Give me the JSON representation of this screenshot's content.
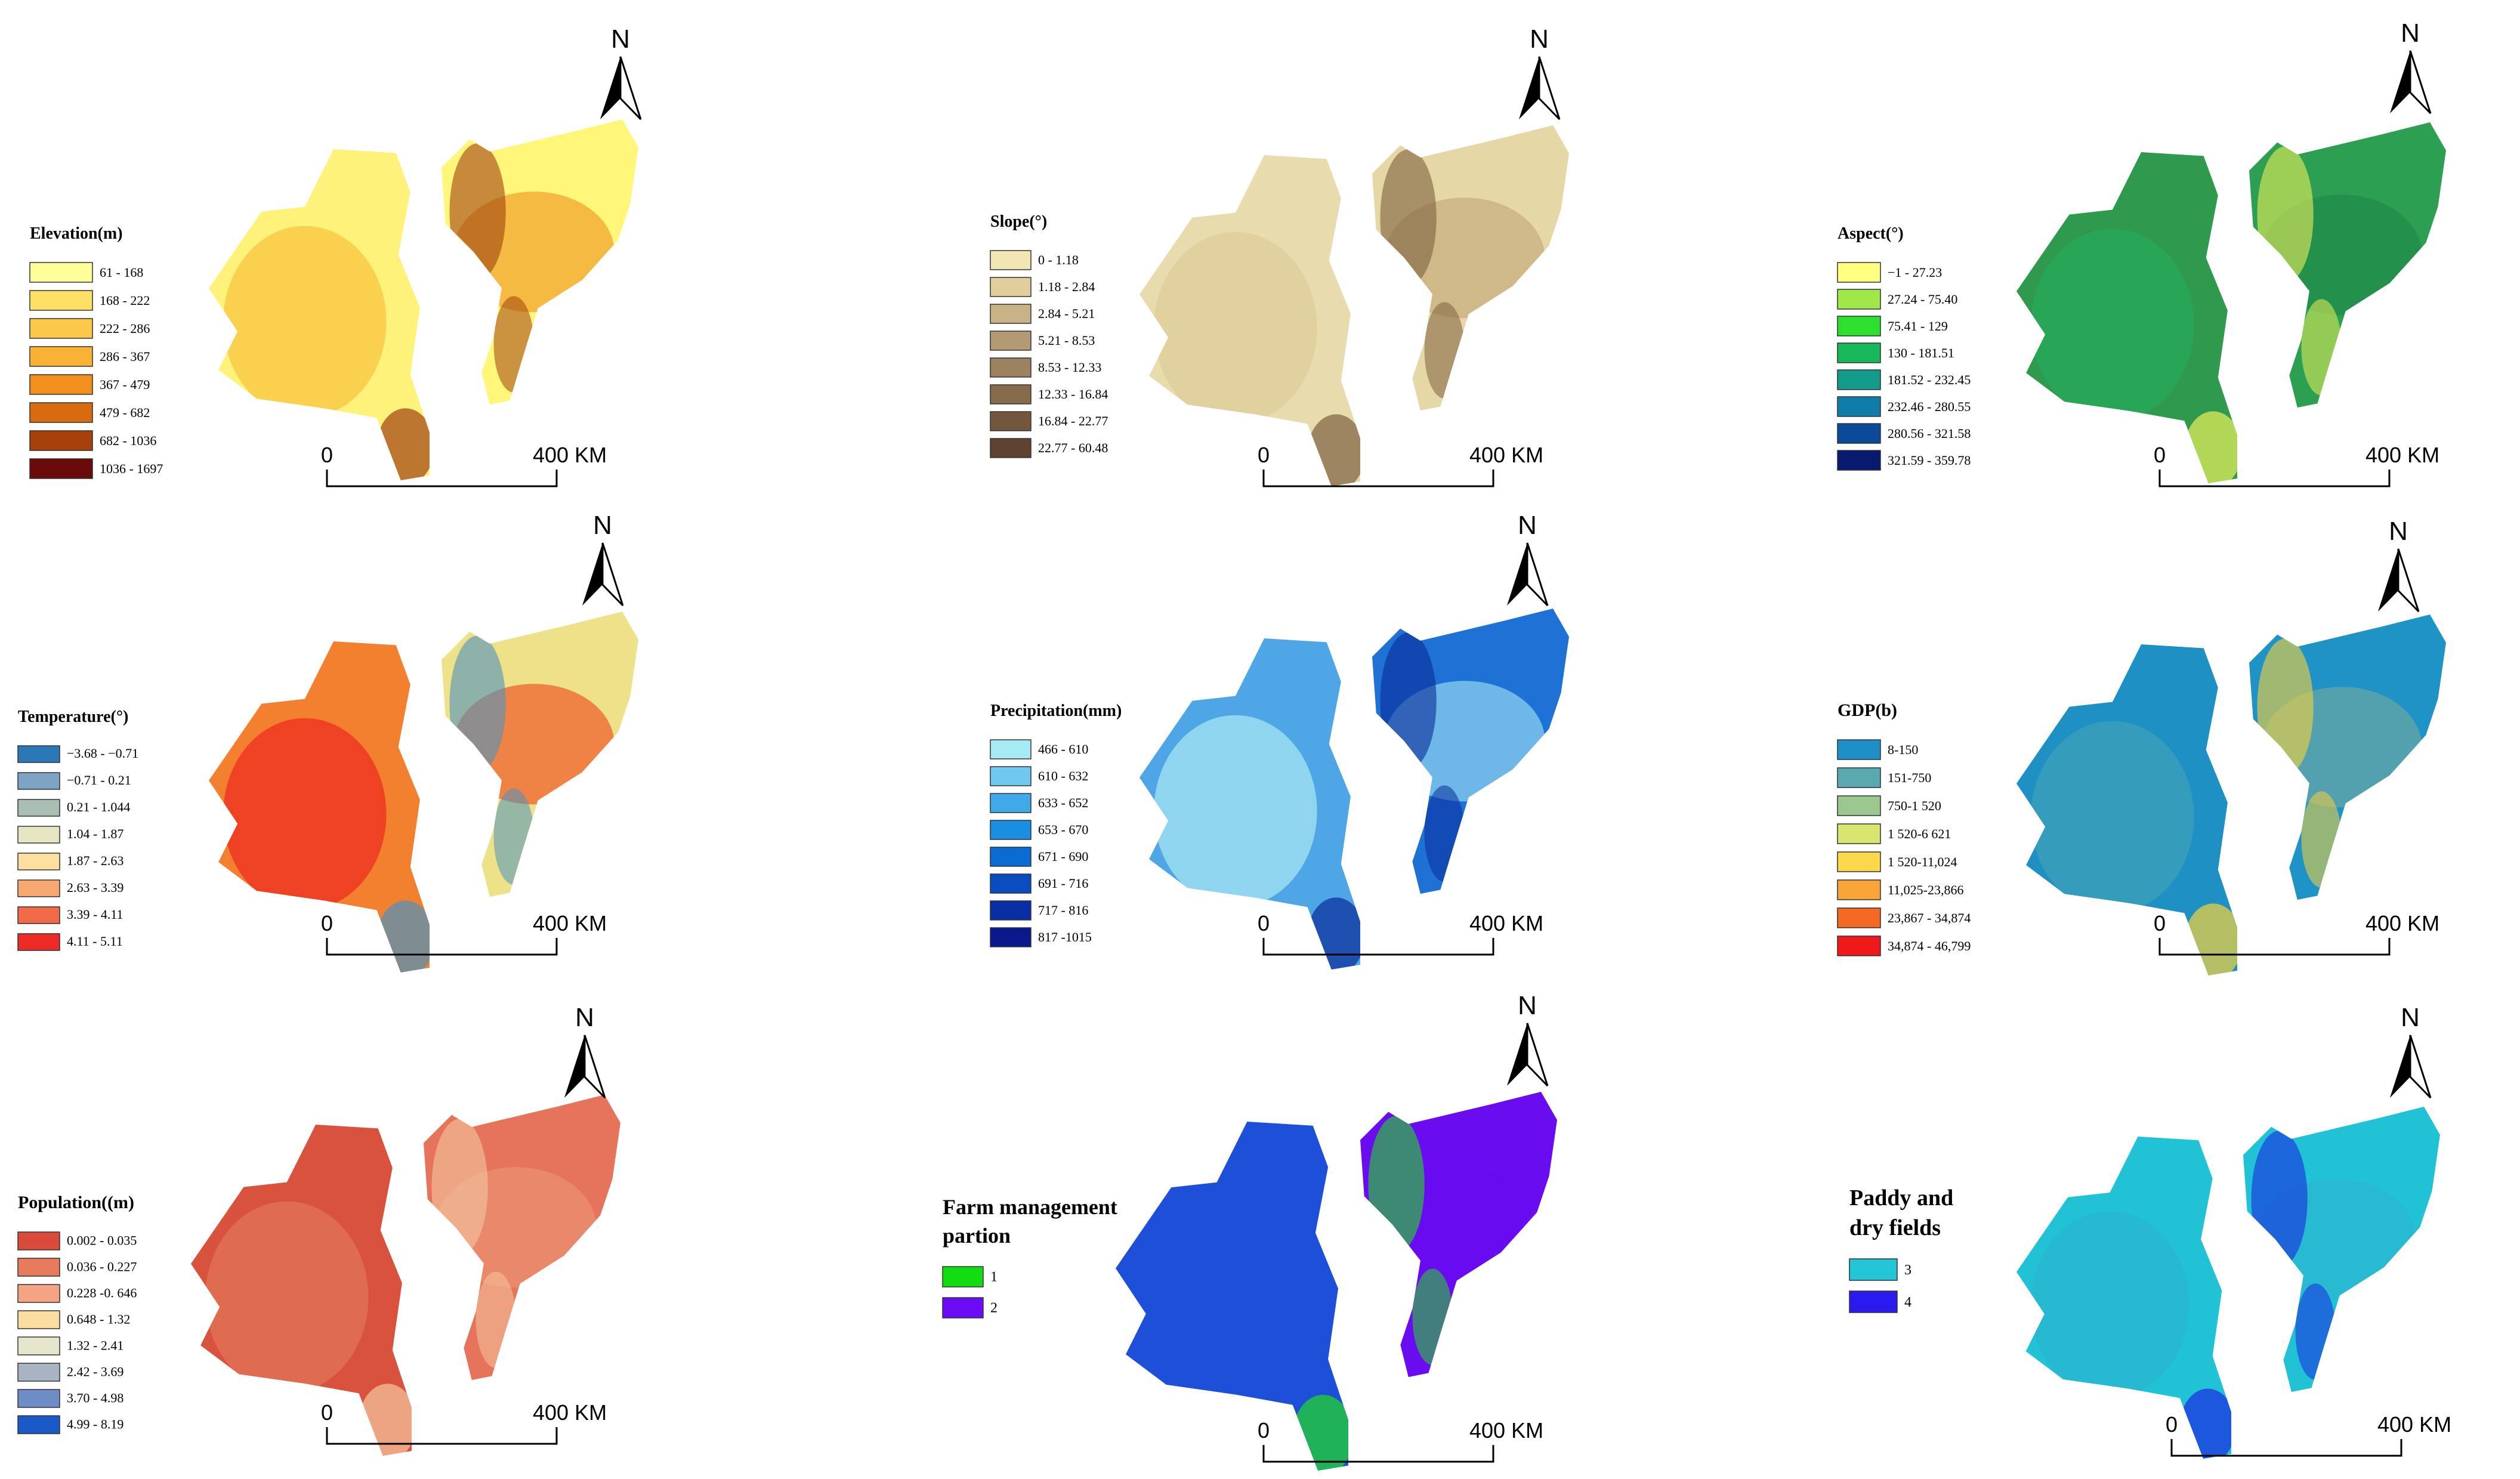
{
  "scale_bar": {
    "start_label": "0",
    "end_label": "400 KM"
  },
  "north_label": "N",
  "panels": [
    {
      "id": "elevation",
      "legend_title": [
        "Elevation(m)"
      ],
      "map_colors": {
        "left_base": "#fff27a",
        "left_mid": "#f7c640",
        "right_base": "#fff67a",
        "right_mid": "#f0a12a",
        "rugged": "#a0420f"
      },
      "legend": [
        {
          "label": "61 - 168",
          "color": "#ffff99"
        },
        {
          "label": "168 - 222",
          "color": "#ffe066"
        },
        {
          "label": "222 - 286",
          "color": "#fcc84a"
        },
        {
          "label": "286 - 367",
          "color": "#f9b233"
        },
        {
          "label": "367 - 479",
          "color": "#f28e1c"
        },
        {
          "label": "479 - 682",
          "color": "#d86a10"
        },
        {
          "label": "682 - 1036",
          "color": "#a8400c"
        },
        {
          "label": "1036 - 1697",
          "color": "#6b0a0a"
        }
      ]
    },
    {
      "id": "slope",
      "legend_title": [
        "Slope(°)"
      ],
      "map_colors": {
        "left_base": "#e8dcae",
        "left_mid": "#ddcd98",
        "right_base": "#e6d8a6",
        "right_mid": "#c6ad7c",
        "rugged": "#7d6040"
      },
      "legend": [
        {
          "label": "0 - 1.18",
          "color": "#f3e6b5"
        },
        {
          "label": "1.18 - 2.84",
          "color": "#e0cf9c"
        },
        {
          "label": "2.84 - 5.21",
          "color": "#c9b386"
        },
        {
          "label": "5.21 - 8.53",
          "color": "#b39a72"
        },
        {
          "label": "8.53 - 12.33",
          "color": "#9c8260"
        },
        {
          "label": "12.33 - 16.84",
          "color": "#866b4d"
        },
        {
          "label": "16.84 - 22.77",
          "color": "#72573c"
        },
        {
          "label": "22.77 - 60.48",
          "color": "#5e4430"
        }
      ]
    },
    {
      "id": "aspect",
      "legend_title": [
        "Aspect(°)"
      ],
      "map_colors": {
        "left_base": "#2f9a4e",
        "left_mid": "#27a85a",
        "right_base": "#2c9f52",
        "right_mid": "#1f8a48",
        "rugged": "#e9ef5a"
      },
      "legend": [
        {
          "label": "−1 - 27.23",
          "color": "#ffff80"
        },
        {
          "label": "27.24 - 75.40",
          "color": "#a0e84a"
        },
        {
          "label": "75.41 - 129",
          "color": "#2ee02e"
        },
        {
          "label": "130 - 181.51",
          "color": "#16b85a"
        },
        {
          "label": "181.52 - 232.45",
          "color": "#139c8c"
        },
        {
          "label": "232.46 - 280.55",
          "color": "#0e7ea8"
        },
        {
          "label": "280.56 - 321.58",
          "color": "#0b4a98"
        },
        {
          "label": "321.59 - 359.78",
          "color": "#081a70"
        }
      ]
    },
    {
      "id": "temperature",
      "legend_title": [
        "Temperature(°)"
      ],
      "map_colors": {
        "left_base": "#f2802e",
        "left_mid": "#ee2e22",
        "right_base": "#ede28a",
        "right_mid": "#f05a28",
        "rugged": "#4f93be"
      },
      "legend": [
        {
          "label": "−3.68 - −0.71",
          "color": "#2b78b8"
        },
        {
          "label": "−0.71 - 0.21",
          "color": "#7ea4c4"
        },
        {
          "label": "0.21 - 1.044",
          "color": "#a9bfb4"
        },
        {
          "label": "1.04 - 1.87",
          "color": "#e6e6c2"
        },
        {
          "label": "1.87 - 2.63",
          "color": "#fde0a0"
        },
        {
          "label": "2.63 - 3.39",
          "color": "#f7a870"
        },
        {
          "label": "3.39 - 4.11",
          "color": "#f26a48"
        },
        {
          "label": "4.11 - 5.11",
          "color": "#ec2a26"
        }
      ]
    },
    {
      "id": "precipitation",
      "legend_title": [
        "Precipitation(mm)"
      ],
      "map_colors": {
        "left_base": "#4ea6e6",
        "left_mid": "#a6e4f2",
        "right_base": "#1e72d6",
        "right_mid": "#8fd6f0",
        "rugged": "#0a2c9a"
      },
      "legend": [
        {
          "label": "466 - 610",
          "color": "#a6eaf4"
        },
        {
          "label": "610 - 632",
          "color": "#6ec8f0"
        },
        {
          "label": "633 - 652",
          "color": "#3eaaea"
        },
        {
          "label": "653 - 670",
          "color": "#1a8ee0"
        },
        {
          "label": "671 - 690",
          "color": "#0a6cd2"
        },
        {
          "label": "691 - 716",
          "color": "#0a4cc0"
        },
        {
          "label": "717 - 816",
          "color": "#0a2ea6"
        },
        {
          "label": "817 -1015",
          "color": "#0a1a8c"
        }
      ]
    },
    {
      "id": "gdp",
      "legend_title": [
        "GDP(b)"
      ],
      "map_colors": {
        "left_base": "#1e90c4",
        "left_mid": "#3fa0b8",
        "right_base": "#1f92c6",
        "right_mid": "#6aa6a4",
        "rugged": "#f7d23a"
      },
      "legend": [
        {
          "label": "8-150",
          "color": "#1e90c8"
        },
        {
          "label": "151-750",
          "color": "#5aa8b0"
        },
        {
          "label": "750-1 520",
          "color": "#9cc890"
        },
        {
          "label": "1 520-6 621",
          "color": "#d8e670"
        },
        {
          "label": "1 520-11,024",
          "color": "#fbd84a"
        },
        {
          "label": "11,025-23,866",
          "color": "#f9a436"
        },
        {
          "label": "23,867 - 34,874",
          "color": "#f46a22"
        },
        {
          "label": "34,874 - 46,799",
          "color": "#ee1a1a"
        }
      ]
    },
    {
      "id": "population",
      "legend_title": [
        "Population((m)"
      ],
      "map_colors": {
        "left_base": "#d9523e",
        "left_mid": "#e07458",
        "right_base": "#e5745a",
        "right_mid": "#ec9272",
        "rugged": "#f4c7a0"
      },
      "legend": [
        {
          "label": "0.002 - 0.035",
          "color": "#d94a3a"
        },
        {
          "label": "0.036 - 0.227",
          "color": "#e87a5e"
        },
        {
          "label": "0.228 -0. 646",
          "color": "#f4a482"
        },
        {
          "label": "0.648 - 1.32",
          "color": "#fbdca0"
        },
        {
          "label": "1.32 - 2.41",
          "color": "#e6e6cc"
        },
        {
          "label": "2.42 - 3.69",
          "color": "#a8b4c4"
        },
        {
          "label": "3.70 - 4.98",
          "color": "#6e8cc8"
        },
        {
          "label": "4.99 - 8.19",
          "color": "#1a5ac8"
        }
      ]
    },
    {
      "id": "farm",
      "legend_title": [
        "Farm management",
        "partion"
      ],
      "map_colors": {
        "left_base": "#1d4fd8",
        "left_mid": "#1d4fd8",
        "right_base": "#6a0cf0",
        "right_mid": "#6a0cf0",
        "rugged": "#22dd22"
      },
      "legend": [
        {
          "label": "1",
          "color": "#11dd11"
        },
        {
          "label": "2",
          "color": "#6a0cf5"
        }
      ]
    },
    {
      "id": "paddy",
      "legend_title": [
        "Paddy and",
        "dry fields"
      ],
      "map_colors": {
        "left_base": "#22c2d6",
        "left_mid": "#2ab6d0",
        "right_base": "#22c2d6",
        "right_mid": "#2ab6d0",
        "rugged": "#1a2ae0"
      },
      "legend": [
        {
          "label": "3",
          "color": "#22c4d6"
        },
        {
          "label": "4",
          "color": "#2a1aee"
        }
      ]
    }
  ]
}
